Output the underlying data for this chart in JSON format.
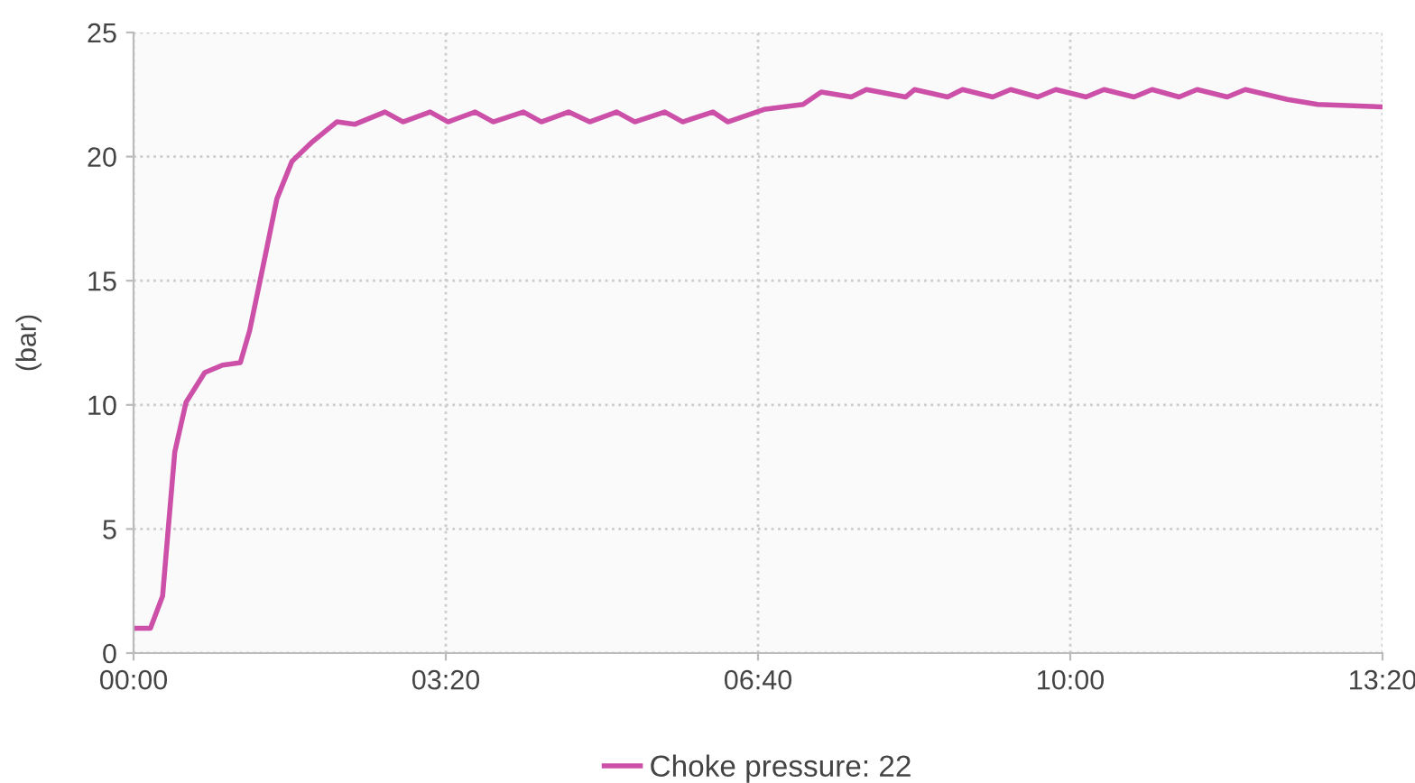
{
  "chart_data": {
    "type": "line",
    "ylabel": "(bar)",
    "xlim": [
      0,
      13.3333
    ],
    "ylim": [
      0,
      25
    ],
    "xticks": [
      {
        "value": 0,
        "label": "00:00"
      },
      {
        "value": 3.3333,
        "label": "03:20"
      },
      {
        "value": 6.6667,
        "label": "06:40"
      },
      {
        "value": 10,
        "label": "10:00"
      },
      {
        "value": 13.3333,
        "label": "13:20"
      }
    ],
    "yticks": [
      0,
      5,
      10,
      15,
      20,
      25
    ],
    "grid": true,
    "legend": "bottom",
    "marker": "none",
    "line_style": "solid",
    "series": [
      {
        "name": "Choke pressure: 22",
        "color": "#cc4fa8",
        "x": [
          0,
          0.18,
          0.31,
          0.37,
          0.44,
          0.56,
          0.76,
          0.95,
          1.14,
          1.24,
          1.4,
          1.53,
          1.69,
          1.91,
          2.17,
          2.36,
          2.684,
          2.877,
          3.166,
          3.358,
          3.647,
          3.84,
          4.162,
          4.354,
          4.644,
          4.869,
          5.158,
          5.351,
          5.671,
          5.863,
          6.185,
          6.345,
          6.73,
          7.148,
          7.341,
          7.663,
          7.823,
          8.241,
          8.337,
          8.69,
          8.85,
          9.172,
          9.364,
          9.653,
          9.846,
          10.168,
          10.36,
          10.68,
          10.873,
          11.162,
          11.354,
          11.676,
          11.869,
          12.318,
          12.64,
          13.3333
        ],
        "values": [
          1.0,
          1.0,
          2.3,
          5.0,
          8.1,
          10.1,
          11.3,
          11.6,
          11.7,
          13.0,
          15.9,
          18.3,
          19.8,
          20.6,
          21.4,
          21.3,
          21.8,
          21.4,
          21.8,
          21.4,
          21.8,
          21.4,
          21.8,
          21.4,
          21.8,
          21.4,
          21.8,
          21.4,
          21.8,
          21.4,
          21.8,
          21.4,
          21.9,
          22.1,
          22.6,
          22.4,
          22.7,
          22.4,
          22.7,
          22.4,
          22.7,
          22.4,
          22.7,
          22.4,
          22.7,
          22.4,
          22.7,
          22.4,
          22.7,
          22.4,
          22.7,
          22.4,
          22.7,
          22.3,
          22.1,
          22.0
        ]
      }
    ]
  }
}
